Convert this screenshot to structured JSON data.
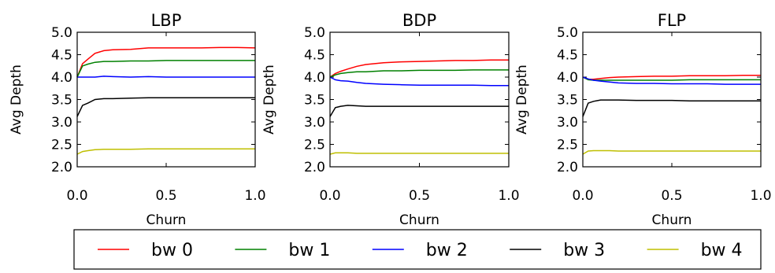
{
  "chart_data": [
    {
      "type": "line",
      "title": "LBP",
      "xlabel": "Churn",
      "ylabel": "Avg Depth",
      "xlim": [
        0.0,
        1.0
      ],
      "ylim": [
        2.0,
        5.0
      ],
      "xticks": [
        "0.0",
        "0.5",
        "1.0"
      ],
      "yticks": [
        "2.0",
        "2.5",
        "3.0",
        "3.5",
        "4.0",
        "4.5",
        "5.0"
      ],
      "x": [
        0.0,
        0.03,
        0.06,
        0.1,
        0.15,
        0.2,
        0.3,
        0.4,
        0.5,
        0.6,
        0.7,
        0.8,
        0.9,
        1.0
      ],
      "series": [
        {
          "name": "bw 0",
          "color": "#ff0000",
          "values": [
            4.0,
            4.3,
            4.4,
            4.53,
            4.59,
            4.61,
            4.62,
            4.65,
            4.65,
            4.65,
            4.65,
            4.66,
            4.66,
            4.65
          ]
        },
        {
          "name": "bw 1",
          "color": "#008000",
          "values": [
            4.0,
            4.25,
            4.29,
            4.33,
            4.35,
            4.35,
            4.36,
            4.36,
            4.37,
            4.37,
            4.37,
            4.37,
            4.37,
            4.37
          ]
        },
        {
          "name": "bw 2",
          "color": "#0000ff",
          "values": [
            4.0,
            4.0,
            4.0,
            4.0,
            4.02,
            4.01,
            4.0,
            4.01,
            4.0,
            4.0,
            4.0,
            4.0,
            4.0,
            4.0
          ]
        },
        {
          "name": "bw 3",
          "color": "#000000",
          "values": [
            3.12,
            3.37,
            3.42,
            3.5,
            3.52,
            3.52,
            3.53,
            3.54,
            3.54,
            3.54,
            3.54,
            3.54,
            3.54,
            3.54
          ]
        },
        {
          "name": "bw 4",
          "color": "#bfbf00",
          "values": [
            2.28,
            2.34,
            2.36,
            2.38,
            2.39,
            2.39,
            2.39,
            2.4,
            2.4,
            2.4,
            2.4,
            2.4,
            2.4,
            2.4
          ]
        }
      ]
    },
    {
      "type": "line",
      "title": "BDP",
      "xlabel": "Churn",
      "ylabel": "Avg Depth",
      "xlim": [
        0.0,
        1.0
      ],
      "ylim": [
        2.0,
        5.0
      ],
      "xticks": [
        "0.0",
        "0.5",
        "1.0"
      ],
      "yticks": [
        "2.0",
        "2.5",
        "3.0",
        "3.5",
        "4.0",
        "4.5",
        "5.0"
      ],
      "x": [
        0.0,
        0.03,
        0.06,
        0.1,
        0.15,
        0.2,
        0.3,
        0.4,
        0.5,
        0.6,
        0.7,
        0.8,
        0.9,
        1.0
      ],
      "series": [
        {
          "name": "bw 0",
          "color": "#ff0000",
          "values": [
            4.0,
            4.08,
            4.13,
            4.18,
            4.24,
            4.28,
            4.32,
            4.34,
            4.35,
            4.36,
            4.37,
            4.37,
            4.38,
            4.38
          ]
        },
        {
          "name": "bw 1",
          "color": "#008000",
          "values": [
            4.0,
            4.05,
            4.08,
            4.1,
            4.12,
            4.12,
            4.14,
            4.14,
            4.15,
            4.15,
            4.15,
            4.16,
            4.16,
            4.16
          ]
        },
        {
          "name": "bw 2",
          "color": "#0000ff",
          "values": [
            4.0,
            3.94,
            3.92,
            3.91,
            3.88,
            3.86,
            3.84,
            3.83,
            3.82,
            3.82,
            3.82,
            3.82,
            3.81,
            3.81
          ]
        },
        {
          "name": "bw 3",
          "color": "#000000",
          "values": [
            3.12,
            3.32,
            3.35,
            3.37,
            3.36,
            3.35,
            3.35,
            3.35,
            3.35,
            3.35,
            3.35,
            3.35,
            3.35,
            3.35
          ]
        },
        {
          "name": "bw 4",
          "color": "#bfbf00",
          "values": [
            2.28,
            2.31,
            2.31,
            2.31,
            2.3,
            2.3,
            2.3,
            2.3,
            2.3,
            2.3,
            2.3,
            2.3,
            2.3,
            2.3
          ]
        }
      ]
    },
    {
      "type": "line",
      "title": "FLP",
      "xlabel": "Churn",
      "ylabel": "Avg Depth",
      "xlim": [
        0.0,
        1.0
      ],
      "ylim": [
        2.0,
        5.0
      ],
      "xticks": [
        "0.0",
        "0.5",
        "1.0"
      ],
      "yticks": [
        "2.0",
        "2.5",
        "3.0",
        "3.5",
        "4.0",
        "4.5",
        "5.0"
      ],
      "x": [
        0.0,
        0.03,
        0.06,
        0.1,
        0.15,
        0.2,
        0.3,
        0.4,
        0.5,
        0.6,
        0.7,
        0.8,
        0.9,
        1.0
      ],
      "series": [
        {
          "name": "bw 0",
          "color": "#ff0000",
          "values": [
            4.0,
            3.95,
            3.95,
            3.97,
            3.99,
            4.0,
            4.01,
            4.02,
            4.02,
            4.03,
            4.03,
            4.03,
            4.04,
            4.04
          ]
        },
        {
          "name": "bw 1",
          "color": "#008000",
          "values": [
            4.0,
            3.94,
            3.93,
            3.93,
            3.93,
            3.93,
            3.93,
            3.93,
            3.93,
            3.94,
            3.94,
            3.94,
            3.94,
            3.94
          ]
        },
        {
          "name": "bw 2",
          "color": "#0000ff",
          "values": [
            4.0,
            3.96,
            3.93,
            3.91,
            3.89,
            3.87,
            3.86,
            3.86,
            3.85,
            3.85,
            3.85,
            3.84,
            3.84,
            3.84
          ]
        },
        {
          "name": "bw 3",
          "color": "#000000",
          "values": [
            3.12,
            3.42,
            3.46,
            3.49,
            3.49,
            3.49,
            3.48,
            3.48,
            3.48,
            3.47,
            3.47,
            3.47,
            3.47,
            3.47
          ]
        },
        {
          "name": "bw 4",
          "color": "#bfbf00",
          "values": [
            2.28,
            2.35,
            2.36,
            2.36,
            2.36,
            2.35,
            2.35,
            2.35,
            2.35,
            2.35,
            2.35,
            2.35,
            2.35,
            2.35
          ]
        }
      ]
    }
  ],
  "legend": {
    "placement": "bottom",
    "items": [
      {
        "label": "bw 0",
        "color": "#ff0000"
      },
      {
        "label": "bw 1",
        "color": "#008000"
      },
      {
        "label": "bw 2",
        "color": "#0000ff"
      },
      {
        "label": "bw 3",
        "color": "#000000"
      },
      {
        "label": "bw 4",
        "color": "#bfbf00"
      }
    ]
  }
}
